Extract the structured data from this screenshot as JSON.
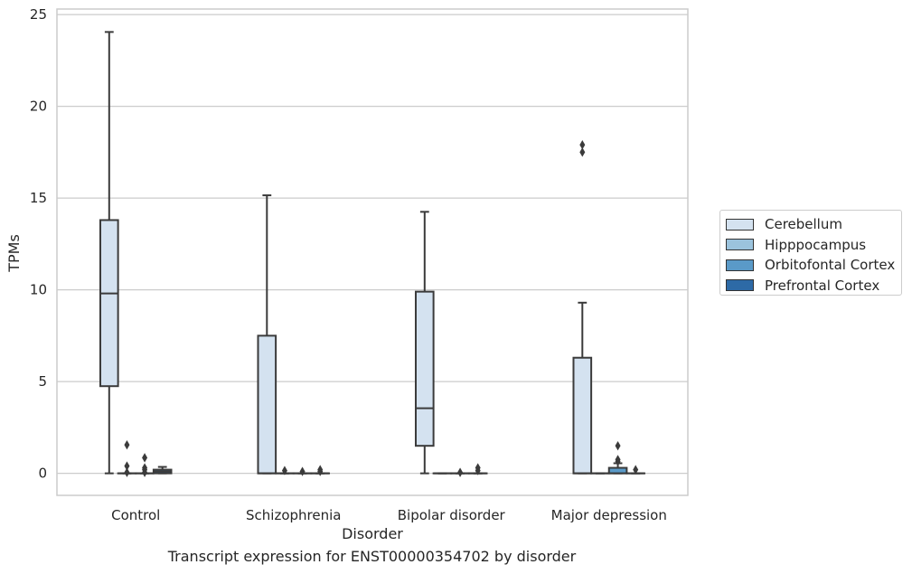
{
  "chart_data": {
    "type": "box",
    "title": "",
    "xlabel": "Disorder",
    "ylabel": "TPMs",
    "caption": "Transcript expression for ENST00000354702 by disorder",
    "ylim": [
      -1.2,
      25.3
    ],
    "yticks": [
      0,
      5,
      10,
      15,
      20,
      25
    ],
    "grid": "horizontal",
    "legend_position": "right",
    "categories": [
      "Control",
      "Schizophrenia",
      "Bipolar disorder",
      "Major depression"
    ],
    "series": [
      {
        "name": "Cerebellum",
        "color": "#d4e2f0",
        "boxes": [
          {
            "whislo": 0,
            "q1": 4.75,
            "med": 9.8,
            "q3": 13.8,
            "whishi": 24.05,
            "fliers": []
          },
          {
            "whislo": 0,
            "q1": 0,
            "med": 0,
            "q3": 7.5,
            "whishi": 15.15,
            "fliers": []
          },
          {
            "whislo": 0,
            "q1": 1.5,
            "med": 3.55,
            "q3": 9.9,
            "whishi": 14.25,
            "fliers": []
          },
          {
            "whislo": 0,
            "q1": 0,
            "med": 0,
            "q3": 6.3,
            "whishi": 9.3,
            "fliers": [
              17.5,
              17.9
            ]
          }
        ]
      },
      {
        "name": "Hipppocampus",
        "color": "#9bc3dd",
        "boxes": [
          {
            "whislo": 0,
            "q1": 0,
            "med": 0,
            "q3": 0,
            "whishi": 0,
            "fliers": [
              0.05,
              0.4,
              1.55
            ]
          },
          {
            "whislo": 0,
            "q1": 0,
            "med": 0,
            "q3": 0,
            "whishi": 0,
            "fliers": [
              0.15
            ]
          },
          {
            "whislo": 0,
            "q1": 0,
            "med": 0,
            "q3": 0,
            "whishi": 0,
            "fliers": []
          },
          {
            "whislo": 0,
            "q1": 0,
            "med": 0,
            "q3": 0,
            "whishi": 0,
            "fliers": []
          }
        ]
      },
      {
        "name": "Orbitofontal Cortex",
        "color": "#5a9ac8",
        "boxes": [
          {
            "whislo": 0,
            "q1": 0,
            "med": 0,
            "q3": 0,
            "whishi": 0,
            "fliers": [
              0.05,
              0.2,
              0.3,
              0.85
            ]
          },
          {
            "whislo": 0,
            "q1": 0,
            "med": 0,
            "q3": 0,
            "whishi": 0,
            "fliers": [
              0.1
            ]
          },
          {
            "whislo": 0,
            "q1": 0,
            "med": 0,
            "q3": 0,
            "whishi": 0,
            "fliers": [
              0.05
            ]
          },
          {
            "whislo": 0,
            "q1": 0,
            "med": 0,
            "q3": 0.3,
            "whishi": 0.55,
            "fliers": [
              0.65,
              0.75,
              1.5
            ]
          }
        ]
      },
      {
        "name": "Prefrontal Cortex",
        "color": "#2d6aa6",
        "boxes": [
          {
            "whislo": 0,
            "q1": 0,
            "med": 0.1,
            "q3": 0.2,
            "whishi": 0.35,
            "fliers": []
          },
          {
            "whislo": 0,
            "q1": 0,
            "med": 0,
            "q3": 0,
            "whishi": 0,
            "fliers": [
              0.1,
              0.2
            ]
          },
          {
            "whislo": 0,
            "q1": 0,
            "med": 0,
            "q3": 0,
            "whishi": 0,
            "fliers": [
              0.15,
              0.3
            ]
          },
          {
            "whislo": 0,
            "q1": 0,
            "med": 0,
            "q3": 0,
            "whishi": 0,
            "fliers": [
              0.2
            ]
          }
        ]
      }
    ]
  }
}
